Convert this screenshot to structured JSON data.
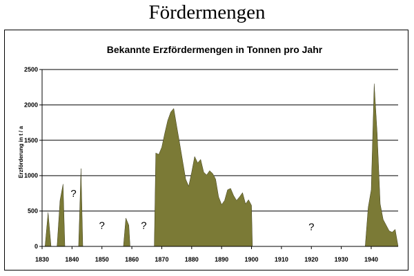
{
  "page": {
    "title": "Fördermengen"
  },
  "chart_data": {
    "type": "area",
    "title": "Bekannte Erzfördermengen in Tonnen pro Jahr",
    "xlabel": "",
    "ylabel": "Erzförderung in t / a",
    "xlim": [
      1830,
      1949
    ],
    "ylim": [
      0,
      2500
    ],
    "x_ticks": [
      "1830",
      "1840",
      "1850",
      "1860",
      "1870",
      "1880",
      "1890",
      "1900",
      "1910",
      "1920",
      "1930",
      "1940"
    ],
    "y_ticks": [
      "0",
      "500",
      "1000",
      "1500",
      "2000",
      "2500"
    ],
    "grid": true,
    "series_color": "#7b7a36",
    "segments": [
      [
        [
          1831,
          0
        ],
        [
          1832,
          480
        ],
        [
          1833,
          0
        ]
      ],
      [
        [
          1835,
          0
        ],
        [
          1836,
          650
        ],
        [
          1837,
          880
        ],
        [
          1837.6,
          0
        ]
      ],
      [
        [
          1842.2,
          0
        ],
        [
          1843,
          1100
        ],
        [
          1843.6,
          0
        ]
      ],
      [
        [
          1857.2,
          0
        ],
        [
          1858,
          400
        ],
        [
          1859,
          300
        ],
        [
          1859.4,
          0
        ]
      ],
      [
        [
          1867.5,
          0
        ],
        [
          1868,
          1320
        ],
        [
          1869,
          1300
        ],
        [
          1870,
          1400
        ],
        [
          1871,
          1600
        ],
        [
          1872,
          1780
        ],
        [
          1873,
          1900
        ],
        [
          1874,
          1950
        ],
        [
          1875,
          1700
        ],
        [
          1876,
          1450
        ],
        [
          1877,
          1200
        ],
        [
          1878,
          950
        ],
        [
          1879,
          850
        ],
        [
          1880,
          1050
        ],
        [
          1881,
          1270
        ],
        [
          1882,
          1180
        ],
        [
          1883,
          1230
        ],
        [
          1884,
          1050
        ],
        [
          1885,
          1010
        ],
        [
          1886,
          1070
        ],
        [
          1887,
          1030
        ],
        [
          1888,
          950
        ],
        [
          1889,
          700
        ],
        [
          1890,
          590
        ],
        [
          1891,
          650
        ],
        [
          1892,
          800
        ],
        [
          1893,
          820
        ],
        [
          1894,
          720
        ],
        [
          1895,
          650
        ],
        [
          1896,
          700
        ],
        [
          1897,
          760
        ],
        [
          1898,
          600
        ],
        [
          1899,
          660
        ],
        [
          1900,
          580
        ],
        [
          1900.3,
          0
        ]
      ],
      [
        [
          1938,
          0
        ],
        [
          1939,
          550
        ],
        [
          1940,
          800
        ],
        [
          1941,
          2300
        ],
        [
          1942,
          1600
        ],
        [
          1943,
          600
        ],
        [
          1944,
          380
        ],
        [
          1945,
          300
        ],
        [
          1946,
          220
        ],
        [
          1947,
          200
        ],
        [
          1948,
          240
        ],
        [
          1949,
          0
        ]
      ]
    ],
    "annotations": [
      {
        "text": "?",
        "x": 1840.5,
        "y": 700
      },
      {
        "text": "?",
        "x": 1850,
        "y": 250
      },
      {
        "text": "?",
        "x": 1864,
        "y": 250
      },
      {
        "text": "?",
        "x": 1920,
        "y": 230
      }
    ]
  }
}
